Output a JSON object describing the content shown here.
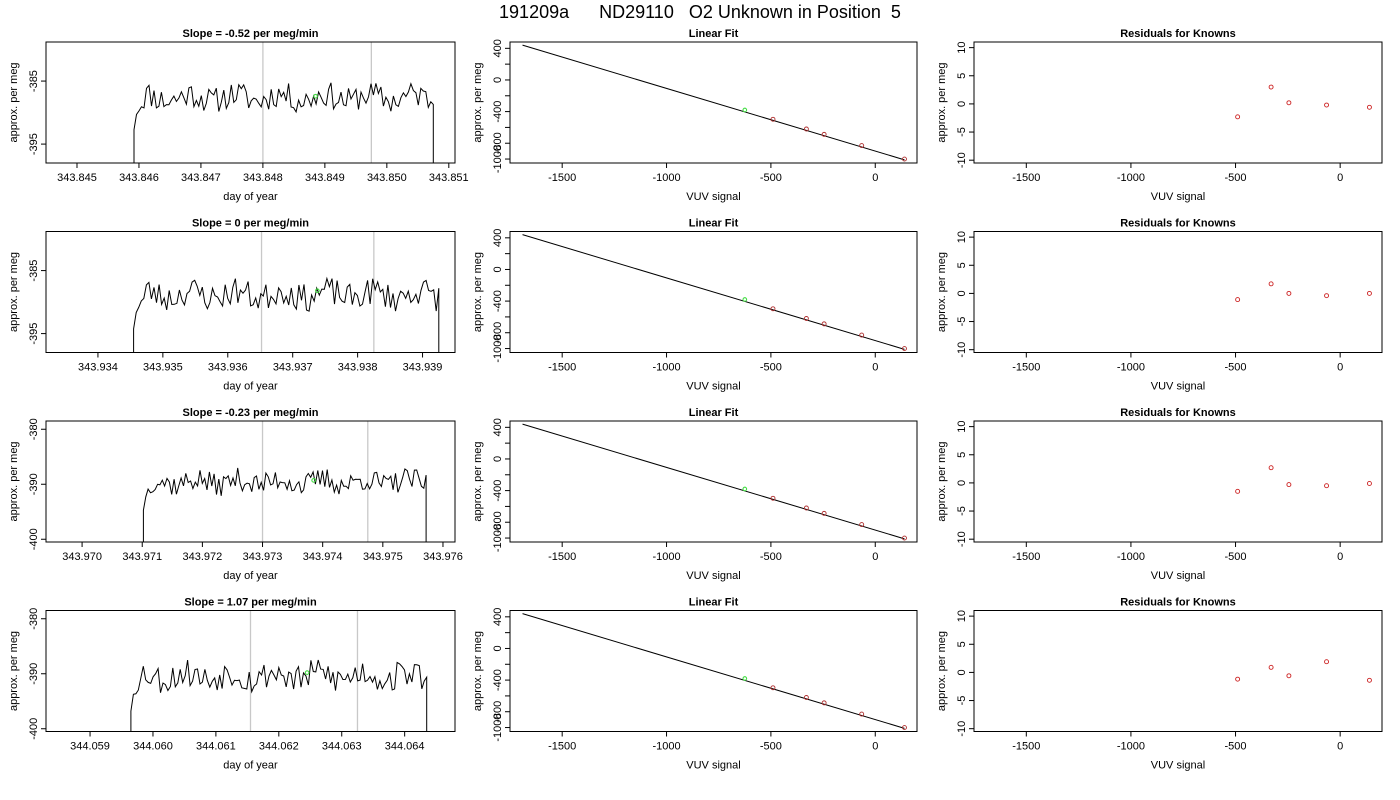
{
  "title": "191209a      ND29110   O2 Unknown in Position  5",
  "chart_data": [
    {
      "type": "line",
      "row": 0,
      "col": 0,
      "title": "Slope =  -0.52  per meg/min",
      "xlabel": "day of year",
      "ylabel": "approx. per meg",
      "xlim": [
        343.8445,
        343.8511
      ],
      "ylim": [
        -398,
        -378.8
      ],
      "xticks": [
        343.845,
        343.846,
        343.847,
        343.848,
        343.849,
        343.85,
        343.851
      ],
      "xtick_labels": [
        "343.845",
        "343.846",
        "343.847",
        "343.848",
        "343.849",
        "343.850",
        "343.851"
      ],
      "yticks": [
        -395,
        -385
      ],
      "ytick_labels": [
        "-395",
        "-385"
      ],
      "trace": {
        "x_start": 343.84592,
        "x_end": 343.85075,
        "mean": -387.6,
        "amplitude": 1.6,
        "seed": 11,
        "edge_drop_start": -398,
        "edge_drop_end": -398
      },
      "vlines": [
        343.848,
        343.84975
      ],
      "green_marker": {
        "x": 343.84885,
        "y": -387.4
      }
    },
    {
      "type": "scatter",
      "row": 0,
      "col": 1,
      "title": "Linear Fit",
      "xlabel": "VUV signal",
      "ylabel": "approx. per meg",
      "xlim": [
        -1750,
        200
      ],
      "ylim": [
        -1050,
        480
      ],
      "xticks": [
        -1500,
        -1000,
        -500,
        0
      ],
      "xtick_labels": [
        "-1500",
        "-1000",
        "-500",
        "0"
      ],
      "yticks": [
        400,
        200,
        0,
        -200,
        -400,
        -600,
        -800,
        -1000
      ],
      "ytick_labels": [
        "400",
        "",
        "0",
        "",
        "-400",
        "",
        "-800",
        "-1000"
      ],
      "fit_line": {
        "x": [
          -1690,
          140
        ],
        "y": [
          440,
          -1010
        ]
      },
      "points": {
        "x": [
          -490,
          -330,
          -245,
          -65,
          140
        ],
        "y": [
          -497,
          -620,
          -688,
          -830,
          -1000
        ]
      },
      "green_marker": {
        "x": -625,
        "y": -380
      }
    },
    {
      "type": "scatter",
      "row": 0,
      "col": 2,
      "title": "Residuals for Knowns",
      "xlabel": "VUV signal",
      "ylabel": "approx. per meg",
      "xlim": [
        -1750,
        200
      ],
      "ylim": [
        -10.5,
        11
      ],
      "xticks": [
        -1500,
        -1000,
        -500,
        0
      ],
      "xtick_labels": [
        "-1500",
        "-1000",
        "-500",
        "0"
      ],
      "yticks": [
        10,
        5,
        0,
        -5,
        -10
      ],
      "ytick_labels": [
        "10",
        "5",
        "0",
        "-5",
        "-10"
      ],
      "points": {
        "x": [
          -490,
          -330,
          -245,
          -65,
          140
        ],
        "y": [
          -2.3,
          3.0,
          0.2,
          -0.2,
          -0.6
        ]
      }
    },
    {
      "type": "line",
      "row": 1,
      "col": 0,
      "title": "Slope =  0  per meg/min",
      "xlabel": "day of year",
      "ylabel": "approx. per meg",
      "xlim": [
        343.9332,
        343.9395
      ],
      "ylim": [
        -398,
        -378.8
      ],
      "xticks": [
        343.934,
        343.935,
        343.936,
        343.937,
        343.938,
        343.939
      ],
      "xtick_labels": [
        "343.934",
        "343.935",
        "343.936",
        "343.937",
        "343.938",
        "343.939"
      ],
      "yticks": [
        -395,
        -385
      ],
      "ytick_labels": [
        "-395",
        "-385"
      ],
      "trace": {
        "x_start": 343.93455,
        "x_end": 343.93925,
        "mean": -388.8,
        "amplitude": 1.7,
        "seed": 23,
        "edge_drop_start": -398,
        "edge_drop_end": -398
      },
      "vlines": [
        343.93652,
        343.93825
      ],
      "green_marker": {
        "x": 343.93738,
        "y": -388.2
      }
    },
    {
      "type": "scatter",
      "row": 1,
      "col": 1,
      "title": "Linear Fit",
      "xlabel": "VUV signal",
      "ylabel": "approx. per meg",
      "xlim": [
        -1750,
        200
      ],
      "ylim": [
        -1050,
        480
      ],
      "xticks": [
        -1500,
        -1000,
        -500,
        0
      ],
      "xtick_labels": [
        "-1500",
        "-1000",
        "-500",
        "0"
      ],
      "yticks": [
        400,
        200,
        0,
        -200,
        -400,
        -600,
        -800,
        -1000
      ],
      "ytick_labels": [
        "400",
        "",
        "0",
        "",
        "-400",
        "",
        "-800",
        "-1000"
      ],
      "fit_line": {
        "x": [
          -1690,
          140
        ],
        "y": [
          440,
          -1010
        ]
      },
      "points": {
        "x": [
          -490,
          -330,
          -245,
          -65,
          140
        ],
        "y": [
          -497,
          -620,
          -688,
          -830,
          -1000
        ]
      },
      "green_marker": {
        "x": -625,
        "y": -380
      }
    },
    {
      "type": "scatter",
      "row": 1,
      "col": 2,
      "title": "Residuals for Knowns",
      "xlabel": "VUV signal",
      "ylabel": "approx. per meg",
      "xlim": [
        -1750,
        200
      ],
      "ylim": [
        -10.5,
        11
      ],
      "xticks": [
        -1500,
        -1000,
        -500,
        0
      ],
      "xtick_labels": [
        "-1500",
        "-1000",
        "-500",
        "0"
      ],
      "yticks": [
        10,
        5,
        0,
        -5,
        -10
      ],
      "ytick_labels": [
        "10",
        "5",
        "0",
        "-5",
        "-10"
      ],
      "points": {
        "x": [
          -490,
          -330,
          -245,
          -65,
          140
        ],
        "y": [
          -1.1,
          1.7,
          0.0,
          -0.4,
          0.0
        ]
      }
    },
    {
      "type": "line",
      "row": 2,
      "col": 0,
      "title": "Slope =  -0.23  per meg/min",
      "xlabel": "day of year",
      "ylabel": "approx. per meg",
      "xlim": [
        343.9694,
        343.9762
      ],
      "ylim": [
        -400.5,
        -378.5
      ],
      "xticks": [
        343.97,
        343.971,
        343.972,
        343.973,
        343.974,
        343.975,
        343.976
      ],
      "xtick_labels": [
        "343.970",
        "343.971",
        "343.972",
        "343.973",
        "343.974",
        "343.975",
        "343.976"
      ],
      "yticks": [
        -400,
        -390,
        -380
      ],
      "ytick_labels": [
        "-400",
        "-390",
        "-380"
      ],
      "trace": {
        "x_start": 343.97102,
        "x_end": 343.97572,
        "mean": -389.6,
        "amplitude": 1.6,
        "seed": 37,
        "edge_drop_start": -400.5,
        "edge_drop_end": -400.5
      },
      "vlines": [
        343.973,
        343.97475
      ],
      "green_marker": {
        "x": 343.97385,
        "y": -389.3
      }
    },
    {
      "type": "scatter",
      "row": 2,
      "col": 1,
      "title": "Linear Fit",
      "xlabel": "VUV signal",
      "ylabel": "approx. per meg",
      "xlim": [
        -1750,
        200
      ],
      "ylim": [
        -1050,
        480
      ],
      "xticks": [
        -1500,
        -1000,
        -500,
        0
      ],
      "xtick_labels": [
        "-1500",
        "-1000",
        "-500",
        "0"
      ],
      "yticks": [
        400,
        200,
        0,
        -200,
        -400,
        -600,
        -800,
        -1000
      ],
      "ytick_labels": [
        "400",
        "",
        "0",
        "",
        "-400",
        "",
        "-800",
        "-1000"
      ],
      "fit_line": {
        "x": [
          -1690,
          140
        ],
        "y": [
          440,
          -1010
        ]
      },
      "points": {
        "x": [
          -490,
          -330,
          -245,
          -65,
          140
        ],
        "y": [
          -497,
          -620,
          -688,
          -830,
          -1000
        ]
      },
      "green_marker": {
        "x": -625,
        "y": -380
      }
    },
    {
      "type": "scatter",
      "row": 2,
      "col": 2,
      "title": "Residuals for Knowns",
      "xlabel": "VUV signal",
      "ylabel": "approx. per meg",
      "xlim": [
        -1750,
        200
      ],
      "ylim": [
        -10.5,
        11
      ],
      "xticks": [
        -1500,
        -1000,
        -500,
        0
      ],
      "xtick_labels": [
        "-1500",
        "-1000",
        "-500",
        "0"
      ],
      "yticks": [
        10,
        5,
        0,
        -5,
        -10
      ],
      "ytick_labels": [
        "10",
        "5",
        "0",
        "-5",
        "-10"
      ],
      "points": {
        "x": [
          -490,
          -330,
          -245,
          -65,
          140
        ],
        "y": [
          -1.5,
          2.7,
          -0.3,
          -0.5,
          -0.1
        ]
      }
    },
    {
      "type": "line",
      "row": 3,
      "col": 0,
      "title": "Slope =  1.07  per meg/min",
      "xlabel": "day of year",
      "ylabel": "approx. per meg",
      "xlim": [
        344.0583,
        344.0648
      ],
      "ylim": [
        -400.5,
        -378.5
      ],
      "xticks": [
        344.059,
        344.06,
        344.061,
        344.062,
        344.063,
        344.064
      ],
      "xtick_labels": [
        "344.059",
        "344.060",
        "344.061",
        "344.062",
        "344.063",
        "344.064"
      ],
      "yticks": [
        -400,
        -390,
        -380
      ],
      "ytick_labels": [
        "-400",
        "-390",
        "-380"
      ],
      "trace": {
        "x_start": 344.05965,
        "x_end": 344.06435,
        "mean": -390.4,
        "amplitude": 2.0,
        "seed": 53,
        "edge_drop_start": -400.5,
        "edge_drop_end": -400.5
      },
      "vlines": [
        344.06155,
        344.06325
      ],
      "green_marker": {
        "x": 344.06245,
        "y": -389.8
      }
    },
    {
      "type": "scatter",
      "row": 3,
      "col": 1,
      "title": "Linear Fit",
      "xlabel": "VUV signal",
      "ylabel": "approx. per meg",
      "xlim": [
        -1750,
        200
      ],
      "ylim": [
        -1050,
        480
      ],
      "xticks": [
        -1500,
        -1000,
        -500,
        0
      ],
      "xtick_labels": [
        "-1500",
        "-1000",
        "-500",
        "0"
      ],
      "yticks": [
        400,
        200,
        0,
        -200,
        -400,
        -600,
        -800,
        -1000
      ],
      "ytick_labels": [
        "400",
        "",
        "0",
        "",
        "-400",
        "",
        "-800",
        "-1000"
      ],
      "fit_line": {
        "x": [
          -1690,
          140
        ],
        "y": [
          440,
          -1010
        ]
      },
      "points": {
        "x": [
          -490,
          -330,
          -245,
          -65,
          140
        ],
        "y": [
          -497,
          -620,
          -688,
          -830,
          -1000
        ]
      },
      "green_marker": {
        "x": -625,
        "y": -380
      }
    },
    {
      "type": "scatter",
      "row": 3,
      "col": 2,
      "title": "Residuals for Knowns",
      "xlabel": "VUV signal",
      "ylabel": "approx. per meg",
      "xlim": [
        -1750,
        200
      ],
      "ylim": [
        -10.5,
        11
      ],
      "xticks": [
        -1500,
        -1000,
        -500,
        0
      ],
      "xtick_labels": [
        "-1500",
        "-1000",
        "-500",
        "0"
      ],
      "yticks": [
        10,
        5,
        0,
        -5,
        -10
      ],
      "ytick_labels": [
        "10",
        "5",
        "0",
        "-5",
        "-10"
      ],
      "points": {
        "x": [
          -490,
          -330,
          -245,
          -65,
          140
        ],
        "y": [
          -1.2,
          0.9,
          -0.6,
          1.9,
          -1.4
        ]
      }
    }
  ],
  "colors": {
    "line": "#000000",
    "vline": "#c8c8c8",
    "residual_point": "#cc2222",
    "green_marker": "#44dd44"
  }
}
